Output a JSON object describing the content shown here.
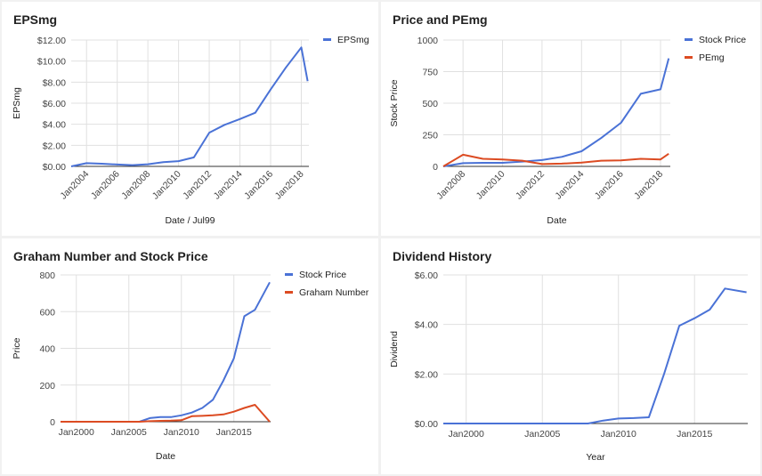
{
  "chart_data": [
    {
      "type": "line",
      "title": "EPSmg",
      "xlabel": "Date / Jul99",
      "ylabel": "EPSmg",
      "x_type": "date",
      "xlim": [
        "2003-01-01",
        "2018-07-01"
      ],
      "ylim": [
        0,
        12
      ],
      "yticks": [
        0,
        2,
        4,
        6,
        8,
        10,
        12
      ],
      "ytick_labels": [
        "$0.00",
        "$2.00",
        "$4.00",
        "$6.00",
        "$8.00",
        "$10.00",
        "$12.00"
      ],
      "xticks": [
        "2004-01-01",
        "2006-01-01",
        "2008-01-01",
        "2010-01-01",
        "2012-01-01",
        "2014-01-01",
        "2016-01-01",
        "2018-01-01"
      ],
      "xtick_labels": [
        "Jan2004",
        "Jan2006",
        "Jan2008",
        "Jan2010",
        "Jan2012",
        "Jan2014",
        "Jan2016",
        "Jan2018"
      ],
      "x_label_rotate": true,
      "grid": true,
      "legend": "top-right",
      "series": [
        {
          "name": "EPSmg",
          "color": "#4a72d6",
          "x": [
            "2003-01-01",
            "2004-01-01",
            "2005-01-01",
            "2006-01-01",
            "2007-01-01",
            "2008-01-01",
            "2009-01-01",
            "2010-01-01",
            "2011-01-01",
            "2012-01-01",
            "2013-01-01",
            "2014-01-01",
            "2015-01-01",
            "2016-01-01",
            "2017-01-01",
            "2018-01-01",
            "2018-06-01"
          ],
          "values": [
            0.0,
            0.3,
            0.25,
            0.18,
            0.12,
            0.2,
            0.4,
            0.5,
            0.85,
            3.2,
            3.95,
            4.5,
            5.1,
            7.3,
            9.4,
            11.3,
            8.1
          ]
        }
      ]
    },
    {
      "type": "line",
      "title": "Price and PEmg",
      "xlabel": "Date",
      "ylabel": "Stock Price",
      "x_type": "date",
      "xlim": [
        "2007-01-01",
        "2018-07-01"
      ],
      "ylim": [
        0,
        1000
      ],
      "yticks": [
        0,
        250,
        500,
        750,
        1000
      ],
      "ytick_labels": [
        "0",
        "250",
        "500",
        "750",
        "1000"
      ],
      "xticks": [
        "2008-01-01",
        "2010-01-01",
        "2012-01-01",
        "2014-01-01",
        "2016-01-01",
        "2018-01-01"
      ],
      "xtick_labels": [
        "Jan2008",
        "Jan2010",
        "Jan2012",
        "Jan2014",
        "Jan2016",
        "Jan2018"
      ],
      "x_label_rotate": true,
      "grid": true,
      "legend": "top-right",
      "series": [
        {
          "name": "Stock Price",
          "color": "#4a72d6",
          "x": [
            "2007-01-01",
            "2008-01-01",
            "2009-01-01",
            "2010-01-01",
            "2011-01-01",
            "2012-01-01",
            "2013-01-01",
            "2014-01-01",
            "2015-01-01",
            "2016-01-01",
            "2017-01-01",
            "2018-01-01",
            "2018-06-01"
          ],
          "values": [
            0,
            25,
            28,
            28,
            38,
            50,
            75,
            120,
            225,
            345,
            575,
            610,
            855
          ]
        },
        {
          "name": "PEmg",
          "color": "#dc4b22",
          "x": [
            "2007-01-01",
            "2008-01-01",
            "2009-01-01",
            "2010-01-01",
            "2011-01-01",
            "2012-01-01",
            "2013-01-01",
            "2014-01-01",
            "2015-01-01",
            "2016-01-01",
            "2017-01-01",
            "2018-01-01",
            "2018-06-01"
          ],
          "values": [
            0,
            92,
            60,
            55,
            45,
            18,
            22,
            30,
            45,
            48,
            60,
            55,
            100
          ]
        }
      ]
    },
    {
      "type": "line",
      "title": "Graham Number and Stock Price",
      "xlabel": "Date",
      "ylabel": "Price",
      "x_type": "date",
      "xlim": [
        "1998-07-01",
        "2018-07-01"
      ],
      "ylim": [
        0,
        800
      ],
      "yticks": [
        0,
        200,
        400,
        600,
        800
      ],
      "ytick_labels": [
        "0",
        "200",
        "400",
        "600",
        "800"
      ],
      "xticks": [
        "2000-01-01",
        "2005-01-01",
        "2010-01-01",
        "2015-01-01"
      ],
      "xtick_labels": [
        "Jan2000",
        "Jan2005",
        "Jan2010",
        "Jan2015"
      ],
      "x_label_rotate": false,
      "grid": true,
      "legend": "top-right",
      "series": [
        {
          "name": "Stock Price",
          "color": "#4a72d6",
          "x": [
            "1998-07-01",
            "2005-06-01",
            "2006-01-01",
            "2007-01-01",
            "2008-01-01",
            "2009-01-01",
            "2010-01-01",
            "2011-01-01",
            "2012-01-01",
            "2013-01-01",
            "2014-01-01",
            "2015-01-01",
            "2016-01-01",
            "2017-01-01",
            "2018-06-01"
          ],
          "values": [
            0,
            0,
            0,
            20,
            25,
            25,
            35,
            50,
            75,
            120,
            225,
            345,
            575,
            610,
            760
          ]
        },
        {
          "name": "Graham Number",
          "color": "#dc4b22",
          "x": [
            "1998-07-01",
            "2006-01-01",
            "2007-01-01",
            "2008-01-01",
            "2009-01-01",
            "2010-01-01",
            "2011-01-01",
            "2012-01-01",
            "2013-01-01",
            "2014-01-01",
            "2015-01-01",
            "2016-01-01",
            "2017-01-01",
            "2018-06-01"
          ],
          "values": [
            0,
            0,
            3,
            5,
            6,
            8,
            30,
            32,
            35,
            40,
            55,
            75,
            92,
            0
          ]
        }
      ]
    },
    {
      "type": "line",
      "title": "Dividend History",
      "xlabel": "Year",
      "ylabel": "Dividend",
      "x_type": "date",
      "xlim": [
        "1998-07-01",
        "2018-07-01"
      ],
      "ylim": [
        0,
        6
      ],
      "yticks": [
        0,
        2,
        4,
        6
      ],
      "ytick_labels": [
        "$0.00",
        "$2.00",
        "$4.00",
        "$6.00"
      ],
      "xticks": [
        "2000-01-01",
        "2005-01-01",
        "2010-01-01",
        "2015-01-01"
      ],
      "xtick_labels": [
        "Jan2000",
        "Jan2005",
        "Jan2010",
        "Jan2015"
      ],
      "x_label_rotate": false,
      "grid": true,
      "legend": "none",
      "series": [
        {
          "color": "#4a72d6",
          "x": [
            "1998-07-01",
            "2008-01-01",
            "2009-01-01",
            "2010-01-01",
            "2011-01-01",
            "2012-01-01",
            "2013-01-01",
            "2014-01-01",
            "2015-01-01",
            "2016-01-01",
            "2017-01-01",
            "2018-06-01"
          ],
          "values": [
            0,
            0,
            0.12,
            0.2,
            0.22,
            0.25,
            2.0,
            3.95,
            4.25,
            4.6,
            5.45,
            5.3
          ]
        }
      ]
    }
  ]
}
